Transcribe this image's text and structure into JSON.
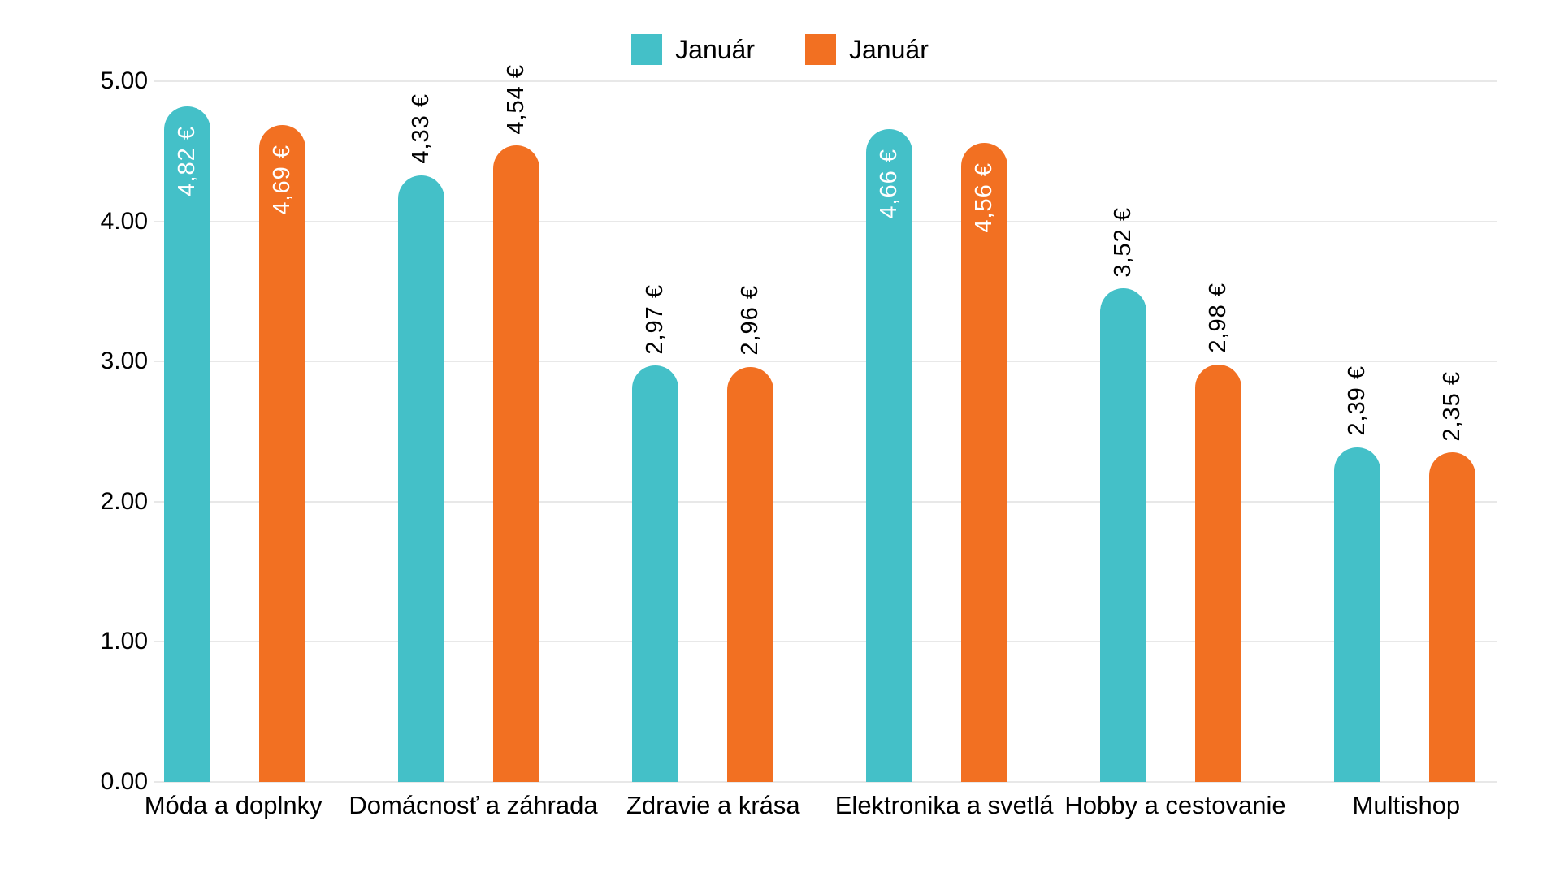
{
  "chart_data": {
    "type": "bar",
    "title": "",
    "categories": [
      "Móda a doplnky",
      "Domácnosť a záhrada",
      "Zdravie a krása",
      "Elektronika a svetlá",
      "Hobby a cestovanie",
      "Multishop"
    ],
    "series": [
      {
        "name": "Január",
        "color": "#44C0C8",
        "values": [
          4.82,
          4.33,
          2.97,
          4.66,
          3.52,
          2.39
        ],
        "labels": [
          "4,82 €",
          "4,33 €",
          "2,97 €",
          "4,66 €",
          "3,52 €",
          "2,39 €"
        ],
        "label_inside": [
          true,
          false,
          false,
          true,
          false,
          false
        ]
      },
      {
        "name": "Január",
        "color": "#F27022",
        "values": [
          4.69,
          4.54,
          2.96,
          4.56,
          2.98,
          2.35
        ],
        "labels": [
          "4,69 €",
          "4,54 €",
          "2,96 €",
          "4,56 €",
          "2,98 €",
          "2,35 €"
        ],
        "label_inside": [
          true,
          false,
          false,
          true,
          false,
          false
        ]
      }
    ],
    "ylabel": "",
    "xlabel": "",
    "ylim": [
      0,
      5
    ],
    "y_ticks": [
      "0.00",
      "1.00",
      "2.00",
      "3.00",
      "4.00",
      "5.00"
    ],
    "grid": true,
    "legend_position": "top",
    "gridline_color": "#e8e8e8",
    "label_color_inside": "#ffffff",
    "label_color_outside": "#000000"
  }
}
